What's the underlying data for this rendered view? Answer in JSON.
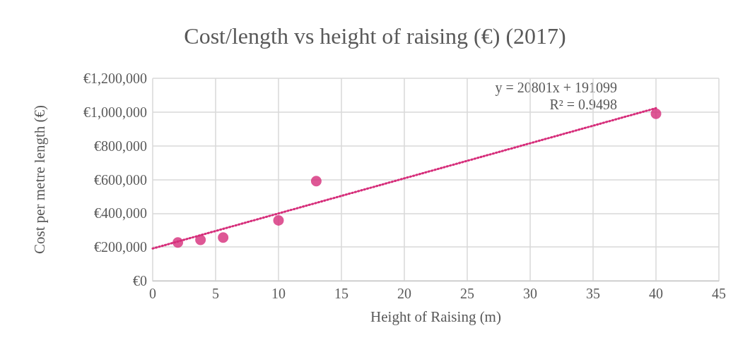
{
  "chart_data": {
    "type": "scatter",
    "title": "Cost/length vs height of raising (€) (2017)",
    "xlabel": "Height of Raising (m)",
    "ylabel": "Cost per metre length (€)",
    "series": [
      {
        "color": "#d62d7a",
        "x": [
          2,
          3.8,
          5.6,
          10,
          13,
          40
        ],
        "values": [
          227000,
          243000,
          256000,
          358000,
          591000,
          990000
        ],
        "marker": "circle"
      },
      {
        "type": "line",
        "color": "#d62d7a",
        "x": [
          0,
          40
        ],
        "values": [
          191000,
          1023000
        ],
        "marker": "none",
        "line_style": "dotted"
      }
    ],
    "xlim": [
      0,
      45
    ],
    "xticks": [
      0,
      5,
      10,
      15,
      20,
      25,
      30,
      35,
      40,
      45
    ],
    "ylim": [
      0,
      1200000
    ],
    "yticks": [
      {
        "value": 0,
        "label": "€0"
      },
      {
        "value": 200000,
        "label": "€200,000"
      },
      {
        "value": 400000,
        "label": "€400,000"
      },
      {
        "value": 600000,
        "label": "€600,000"
      },
      {
        "value": 800000,
        "label": "€800,000"
      },
      {
        "value": 1000000,
        "label": "€1,000,000"
      },
      {
        "value": 1200000,
        "label": "€1,200,000"
      }
    ],
    "grid": true,
    "annotations": [
      "y = 20801x + 191099",
      "R² = 0.9498"
    ]
  }
}
